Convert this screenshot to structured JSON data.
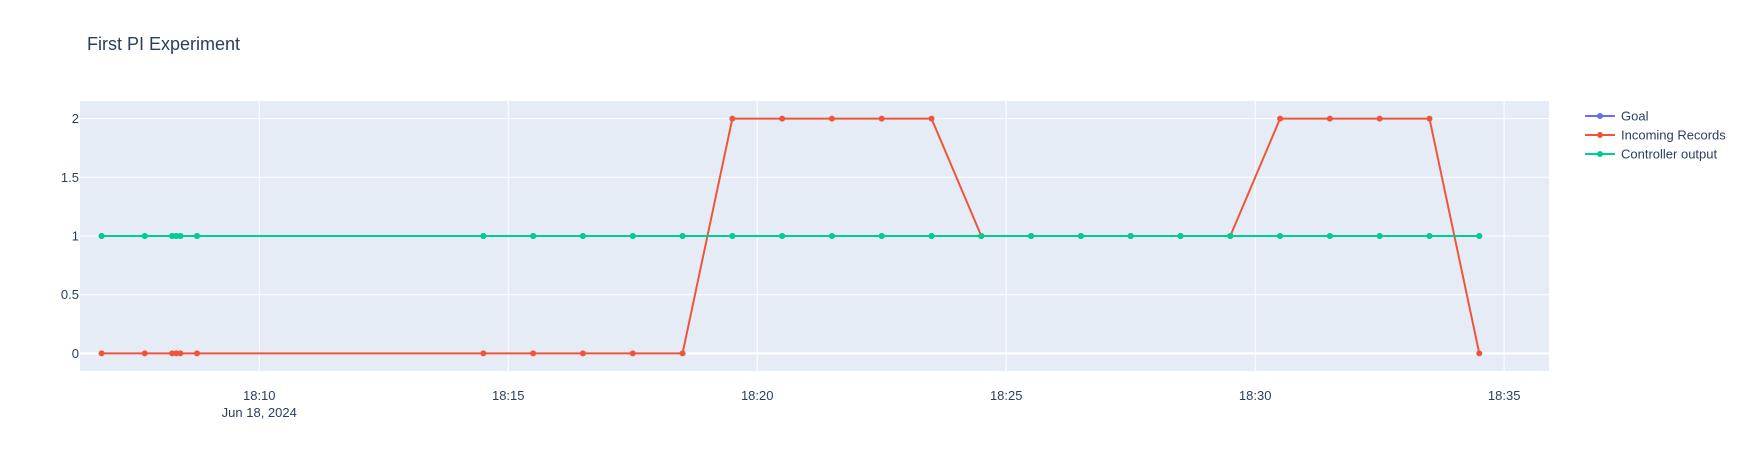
{
  "chart_data": {
    "type": "line",
    "title": "First PI Experiment",
    "xlabel": "",
    "ylabel": "",
    "x_axis": {
      "type": "time",
      "range": [
        "2024-06-18 18:06:24",
        "2024-06-18 18:35:54"
      ],
      "ticks": [
        {
          "value": "2024-06-18 18:10:00",
          "label": "18:10",
          "sublabel": "Jun 18, 2024"
        },
        {
          "value": "2024-06-18 18:15:00",
          "label": "18:15",
          "sublabel": ""
        },
        {
          "value": "2024-06-18 18:20:00",
          "label": "18:20",
          "sublabel": ""
        },
        {
          "value": "2024-06-18 18:25:00",
          "label": "18:25",
          "sublabel": ""
        },
        {
          "value": "2024-06-18 18:30:00",
          "label": "18:30",
          "sublabel": ""
        },
        {
          "value": "2024-06-18 18:35:00",
          "label": "18:35",
          "sublabel": ""
        }
      ]
    },
    "y_axis": {
      "range": [
        -0.15,
        2.15
      ],
      "ticks": [
        {
          "value": 0,
          "label": "0"
        },
        {
          "value": 0.5,
          "label": "0.5"
        },
        {
          "value": 1,
          "label": "1"
        },
        {
          "value": 1.5,
          "label": "1.5"
        },
        {
          "value": 2,
          "label": "2"
        }
      ]
    },
    "grid": true,
    "legend_position": "top-right",
    "x": [
      "2024-06-18 18:06:50",
      "2024-06-18 18:07:42",
      "2024-06-18 18:08:15",
      "2024-06-18 18:08:20",
      "2024-06-18 18:08:25",
      "2024-06-18 18:08:45",
      "2024-06-18 18:14:30",
      "2024-06-18 18:15:30",
      "2024-06-18 18:16:30",
      "2024-06-18 18:17:30",
      "2024-06-18 18:18:30",
      "2024-06-18 18:19:30",
      "2024-06-18 18:20:30",
      "2024-06-18 18:21:30",
      "2024-06-18 18:22:30",
      "2024-06-18 18:23:30",
      "2024-06-18 18:24:30",
      "2024-06-18 18:25:30",
      "2024-06-18 18:26:30",
      "2024-06-18 18:27:30",
      "2024-06-18 18:28:30",
      "2024-06-18 18:29:30",
      "2024-06-18 18:30:30",
      "2024-06-18 18:31:30",
      "2024-06-18 18:32:30",
      "2024-06-18 18:33:30",
      "2024-06-18 18:34:30"
    ],
    "series": [
      {
        "name": "Goal",
        "color": "#636efa",
        "values": [
          1,
          1,
          1,
          1,
          1,
          1,
          1,
          1,
          1,
          1,
          1,
          1,
          1,
          1,
          1,
          1,
          1,
          1,
          1,
          1,
          1,
          1,
          1,
          1,
          1,
          1,
          1
        ]
      },
      {
        "name": "Incoming Records",
        "color": "#EF553B",
        "values": [
          0,
          0,
          0,
          0,
          0,
          0,
          0,
          0,
          0,
          0,
          0,
          2,
          2,
          2,
          2,
          2,
          1,
          1,
          1,
          1,
          1,
          1,
          2,
          2,
          2,
          2,
          0
        ]
      },
      {
        "name": "Controller output",
        "color": "#00cc96",
        "values": [
          1,
          1,
          1,
          1,
          1,
          1,
          1,
          1,
          1,
          1,
          1,
          1,
          1,
          1,
          1,
          1,
          1,
          1,
          1,
          1,
          1,
          1,
          1,
          1,
          1,
          1,
          1
        ]
      }
    ]
  }
}
